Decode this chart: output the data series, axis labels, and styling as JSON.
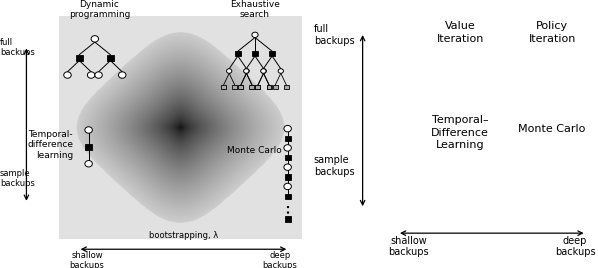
{
  "fig_width": 5.98,
  "fig_height": 2.68,
  "dpi": 100,
  "bg_color": "#ffffff",
  "left_panel": {
    "label_DP": "Dynamic\nprogramming",
    "label_ES": "Exhaustive\nsearch",
    "label_TD": "Temporal-\ndifference\nlearning",
    "label_MC": "Monte Carlo",
    "ylabel_full": "full\nbackups",
    "ylabel_sample": "sample\nbackups",
    "xlabel_shallow": "shallow\nbackups",
    "xlabel_deep": "deep\nbackups",
    "xlabel_bootstrap": "bootstrapping, λ"
  },
  "right_panel": {
    "ylabel_full": "full\nbackups",
    "ylabel_sample": "sample\nbackups",
    "xlabel_shallow": "shallow\nbackups",
    "xlabel_deep": "deep\nbackups",
    "label_VI": "Value\nIteration",
    "label_PI": "Policy\nIteration",
    "label_TD": "Temporal–\nDifference\nLearning",
    "label_MC": "Monte Carlo"
  }
}
